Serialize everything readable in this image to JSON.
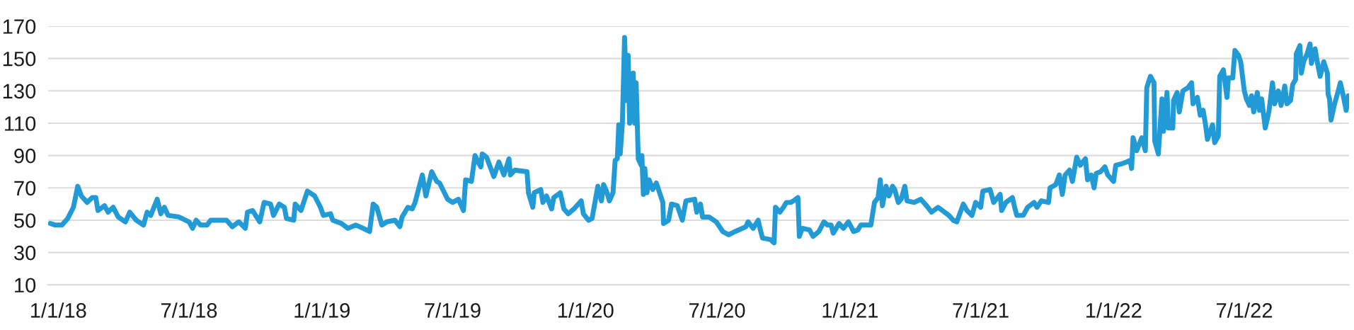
{
  "chart_data": {
    "type": "line",
    "x": [
      "2017-12-21",
      "2017-12-28",
      "2018-01-06",
      "2018-01-14",
      "2018-01-22",
      "2018-01-28",
      "2018-02-02",
      "2018-02-10",
      "2018-02-17",
      "2018-02-22",
      "2018-02-25",
      "2018-03-06",
      "2018-03-11",
      "2018-03-18",
      "2018-03-25",
      "2018-04-04",
      "2018-04-10",
      "2018-04-19",
      "2018-04-29",
      "2018-05-04",
      "2018-05-09",
      "2018-05-18",
      "2018-05-23",
      "2018-05-28",
      "2018-06-02",
      "2018-06-17",
      "2018-07-01",
      "2018-07-06",
      "2018-07-11",
      "2018-07-17",
      "2018-07-26",
      "2018-07-31",
      "2018-08-22",
      "2018-08-30",
      "2018-09-08",
      "2018-09-17",
      "2018-09-20",
      "2018-09-27",
      "2018-10-07",
      "2018-10-13",
      "2018-10-22",
      "2018-10-26",
      "2018-11-03",
      "2018-11-10",
      "2018-11-13",
      "2018-11-23",
      "2018-11-25",
      "2018-12-03",
      "2018-12-12",
      "2018-12-22",
      "2018-12-30",
      "2019-01-03",
      "2019-01-13",
      "2019-01-16",
      "2019-01-28",
      "2019-02-06",
      "2019-02-17",
      "2019-02-27",
      "2019-03-08",
      "2019-03-13",
      "2019-03-18",
      "2019-03-25",
      "2019-04-01",
      "2019-04-12",
      "2019-04-19",
      "2019-04-22",
      "2019-04-30",
      "2019-05-06",
      "2019-05-10",
      "2019-05-20",
      "2019-05-25",
      "2019-06-02",
      "2019-06-09",
      "2019-06-13",
      "2019-06-24",
      "2019-07-01",
      "2019-07-09",
      "2019-07-16",
      "2019-07-19",
      "2019-07-27",
      "2019-08-01",
      "2019-08-09",
      "2019-08-11",
      "2019-08-17",
      "2019-08-27",
      "2019-09-03",
      "2019-09-10",
      "2019-09-17",
      "2019-09-19",
      "2019-09-25",
      "2019-10-12",
      "2019-10-14",
      "2019-10-20",
      "2019-10-22",
      "2019-10-31",
      "2019-11-03",
      "2019-11-08",
      "2019-11-15",
      "2019-11-18",
      "2019-11-27",
      "2019-12-02",
      "2019-12-08",
      "2019-12-16",
      "2019-12-26",
      "2019-12-29",
      "2020-01-05",
      "2020-01-10",
      "2020-01-18",
      "2020-01-23",
      "2020-01-26",
      "2020-01-30",
      "2020-02-03",
      "2020-02-08",
      "2020-02-11",
      "2020-02-14",
      "2020-02-16",
      "2020-02-18",
      "2020-02-21",
      "2020-02-24",
      "2020-02-27",
      "2020-02-29",
      "2020-03-02",
      "2020-03-07",
      "2020-03-09",
      "2020-03-11",
      "2020-03-14",
      "2020-03-18",
      "2020-03-19",
      "2020-03-21",
      "2020-03-23",
      "2020-03-26",
      "2020-03-29",
      "2020-04-03",
      "2020-04-08",
      "2020-04-17",
      "2020-04-18",
      "2020-04-25",
      "2020-04-29",
      "2020-05-07",
      "2020-05-14",
      "2020-05-19",
      "2020-05-31",
      "2020-06-03",
      "2020-06-08",
      "2020-06-11",
      "2020-06-20",
      "2020-06-30",
      "2020-07-09",
      "2020-07-17",
      "2020-07-26",
      "2020-08-10",
      "2020-08-13",
      "2020-08-20",
      "2020-08-27",
      "2020-08-30",
      "2020-09-02",
      "2020-09-13",
      "2020-09-18",
      "2020-09-20",
      "2020-09-26",
      "2020-10-01",
      "2020-10-05",
      "2020-10-11",
      "2020-10-15",
      "2020-10-21",
      "2020-10-23",
      "2020-10-27",
      "2020-11-06",
      "2020-11-11",
      "2020-11-19",
      "2020-11-26",
      "2020-12-01",
      "2020-12-06",
      "2020-12-09",
      "2020-12-17",
      "2020-12-23",
      "2020-12-30",
      "2021-01-06",
      "2021-01-12",
      "2021-01-16",
      "2021-01-22",
      "2021-01-30",
      "2021-02-04",
      "2021-02-09",
      "2021-02-12",
      "2021-02-15",
      "2021-02-20",
      "2021-02-24",
      "2021-03-01",
      "2021-03-04",
      "2021-03-09",
      "2021-03-13",
      "2021-03-18",
      "2021-03-21",
      "2021-03-31",
      "2021-04-09",
      "2021-04-17",
      "2021-04-24",
      "2021-05-03",
      "2021-05-09",
      "2021-05-18",
      "2021-05-24",
      "2021-05-29",
      "2021-06-07",
      "2021-06-12",
      "2021-06-19",
      "2021-06-24",
      "2021-07-01",
      "2021-07-04",
      "2021-07-14",
      "2021-07-19",
      "2021-07-28",
      "2021-07-30",
      "2021-08-05",
      "2021-08-14",
      "2021-08-17",
      "2021-08-20",
      "2021-08-29",
      "2021-09-04",
      "2021-09-13",
      "2021-09-17",
      "2021-09-23",
      "2021-10-03",
      "2021-10-05",
      "2021-10-13",
      "2021-10-18",
      "2021-10-22",
      "2021-10-26",
      "2021-11-01",
      "2021-11-05",
      "2021-11-11",
      "2021-11-16",
      "2021-11-23",
      "2021-11-26",
      "2021-12-01",
      "2021-12-05",
      "2021-12-08",
      "2021-12-14",
      "2021-12-20",
      "2021-12-24",
      "2022-01-01",
      "2022-01-04",
      "2022-01-13",
      "2022-01-19",
      "2022-01-24",
      "2022-01-26",
      "2022-01-28",
      "2022-02-02",
      "2022-02-09",
      "2022-02-14",
      "2022-02-16",
      "2022-02-21",
      "2022-02-26",
      "2022-02-27",
      "2022-03-04",
      "2022-03-09",
      "2022-03-11",
      "2022-03-16",
      "2022-03-18",
      "2022-03-24",
      "2022-03-25",
      "2022-03-30",
      "2022-04-02",
      "2022-04-07",
      "2022-04-14",
      "2022-04-19",
      "2022-04-21",
      "2022-04-27",
      "2022-05-01",
      "2022-05-05",
      "2022-05-08",
      "2022-05-11",
      "2022-05-18",
      "2022-05-21",
      "2022-05-26",
      "2022-05-28",
      "2022-06-02",
      "2022-06-07",
      "2022-06-09",
      "2022-06-15",
      "2022-06-18",
      "2022-06-23",
      "2022-06-26",
      "2022-07-01",
      "2022-07-04",
      "2022-07-08",
      "2022-07-11",
      "2022-07-14",
      "2022-07-19",
      "2022-07-22",
      "2022-07-25",
      "2022-07-30",
      "2022-08-04",
      "2022-08-09",
      "2022-08-12",
      "2022-08-17",
      "2022-08-21",
      "2022-08-26",
      "2022-08-29",
      "2022-09-03",
      "2022-09-06",
      "2022-09-10",
      "2022-09-11",
      "2022-09-16",
      "2022-09-18",
      "2022-09-21",
      "2022-09-26",
      "2022-09-30",
      "2022-10-02",
      "2022-10-07",
      "2022-10-10",
      "2022-10-14",
      "2022-10-19",
      "2022-10-24",
      "2022-10-25",
      "2022-10-27",
      "2022-10-29",
      "2022-11-03",
      "2022-11-08",
      "2022-11-11",
      "2022-11-14",
      "2022-11-19",
      "2022-11-22"
    ],
    "series": [
      {
        "color": "#229ad6",
        "values": [
          48,
          47,
          47,
          51,
          58,
          71,
          65,
          61,
          64,
          64,
          56,
          59,
          55,
          58,
          52,
          49,
          55,
          50,
          47,
          55,
          53,
          63,
          54,
          58,
          53,
          52,
          49,
          45,
          50,
          47,
          47,
          50,
          50,
          46,
          49,
          45,
          55,
          56,
          49,
          61,
          60,
          53,
          60,
          58,
          51,
          50,
          60,
          56,
          68,
          65,
          58,
          53,
          54,
          50,
          48,
          45,
          47,
          45,
          43,
          60,
          58,
          47,
          49,
          50,
          46,
          52,
          58,
          57,
          61,
          78,
          65,
          80,
          74,
          73,
          63,
          61,
          63,
          56,
          75,
          74,
          90,
          83,
          91,
          89,
          77,
          86,
          78,
          88,
          78,
          81,
          80,
          67,
          58,
          67,
          69,
          61,
          65,
          57,
          64,
          67,
          57,
          54,
          57,
          62,
          54,
          50,
          51,
          71,
          62,
          72,
          68,
          62,
          67,
          87,
          88,
          109,
          91,
          110,
          163,
          124,
          152,
          110,
          141,
          110,
          135,
          88,
          84,
          90,
          66,
          82,
          67,
          75,
          69,
          73,
          61,
          48,
          50,
          60,
          59,
          50,
          62,
          63,
          55,
          60,
          52,
          52,
          49,
          43,
          41,
          43,
          46,
          49,
          45,
          50,
          44,
          39,
          38,
          36,
          58,
          55,
          58,
          61,
          61,
          62,
          64,
          40,
          45,
          44,
          40,
          43,
          49,
          47,
          47,
          42,
          48,
          45,
          49,
          43,
          44,
          47,
          47,
          47,
          61,
          64,
          75,
          59,
          71,
          65,
          71,
          69,
          61,
          63,
          71,
          62,
          61,
          63,
          59,
          55,
          58,
          56,
          53,
          50,
          49,
          60,
          56,
          53,
          61,
          58,
          68,
          69,
          61,
          66,
          56,
          61,
          64,
          58,
          53,
          53,
          58,
          61,
          58,
          62,
          61,
          70,
          72,
          78,
          66,
          78,
          81,
          74,
          89,
          84,
          88,
          75,
          78,
          70,
          79,
          80,
          83,
          78,
          74,
          84,
          85,
          86,
          87,
          82,
          101,
          93,
          101,
          93,
          132,
          139,
          135,
          99,
          91,
          125,
          105,
          129,
          107,
          107,
          124,
          129,
          117,
          130,
          132,
          135,
          122,
          126,
          115,
          118,
          110,
          100,
          109,
          98,
          102,
          139,
          143,
          126,
          138,
          138,
          155,
          152,
          148,
          130,
          125,
          121,
          127,
          117,
          129,
          118,
          125,
          107,
          117,
          135,
          122,
          130,
          121,
          133,
          122,
          124,
          134,
          137,
          153,
          158,
          141,
          148,
          153,
          159,
          147,
          156,
          148,
          139,
          148,
          141,
          128,
          125,
          112,
          122,
          130,
          135,
          129,
          118,
          127
        ]
      }
    ],
    "xlim": [
      "2017-12-18",
      "2022-11-23"
    ],
    "xticks": [
      {
        "value": "2018-01-01",
        "label": "1/1/18"
      },
      {
        "value": "2018-07-01",
        "label": "7/1/18"
      },
      {
        "value": "2019-01-01",
        "label": "1/1/19"
      },
      {
        "value": "2019-07-01",
        "label": "7/1/19"
      },
      {
        "value": "2020-01-01",
        "label": "1/1/20"
      },
      {
        "value": "2020-07-01",
        "label": "7/1/20"
      },
      {
        "value": "2021-01-01",
        "label": "1/1/21"
      },
      {
        "value": "2021-07-01",
        "label": "7/1/21"
      },
      {
        "value": "2022-01-01",
        "label": "1/1/22"
      },
      {
        "value": "2022-07-01",
        "label": "7/1/22"
      }
    ],
    "ylim": [
      10,
      170
    ],
    "yticks": [
      10,
      30,
      50,
      70,
      90,
      110,
      130,
      150,
      170
    ],
    "grid": "y",
    "marker": "none",
    "line_style": "solid"
  }
}
